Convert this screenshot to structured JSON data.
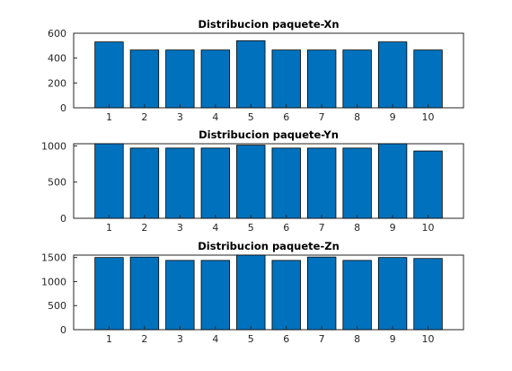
{
  "chart_data": [
    {
      "type": "bar",
      "title": "Distribucion paquete-Xn",
      "categories": [
        "1",
        "2",
        "3",
        "4",
        "5",
        "6",
        "7",
        "8",
        "9",
        "10"
      ],
      "values": [
        530,
        465,
        465,
        465,
        540,
        465,
        465,
        465,
        530,
        465
      ],
      "ylim": [
        0,
        600
      ],
      "yticks": [
        "0",
        "200",
        "400",
        "600"
      ],
      "bar_color": "#0072bd"
    },
    {
      "type": "bar",
      "title": "Distribucion paquete-Yn",
      "categories": [
        "1",
        "2",
        "3",
        "4",
        "5",
        "6",
        "7",
        "8",
        "9",
        "10"
      ],
      "values": [
        1030,
        970,
        970,
        970,
        1010,
        970,
        970,
        970,
        1030,
        930
      ],
      "ylim": [
        0,
        1030
      ],
      "yticks": [
        "0",
        "500",
        "1000"
      ],
      "bar_color": "#0072bd"
    },
    {
      "type": "bar",
      "title": "Distribucion paquete-Zn",
      "categories": [
        "1",
        "2",
        "3",
        "4",
        "5",
        "6",
        "7",
        "8",
        "9",
        "10"
      ],
      "values": [
        1500,
        1510,
        1440,
        1440,
        1550,
        1440,
        1510,
        1440,
        1500,
        1480
      ],
      "ylim": [
        0,
        1550
      ],
      "yticks": [
        "0",
        "500",
        "1000",
        "1500"
      ],
      "bar_color": "#0072bd"
    }
  ]
}
